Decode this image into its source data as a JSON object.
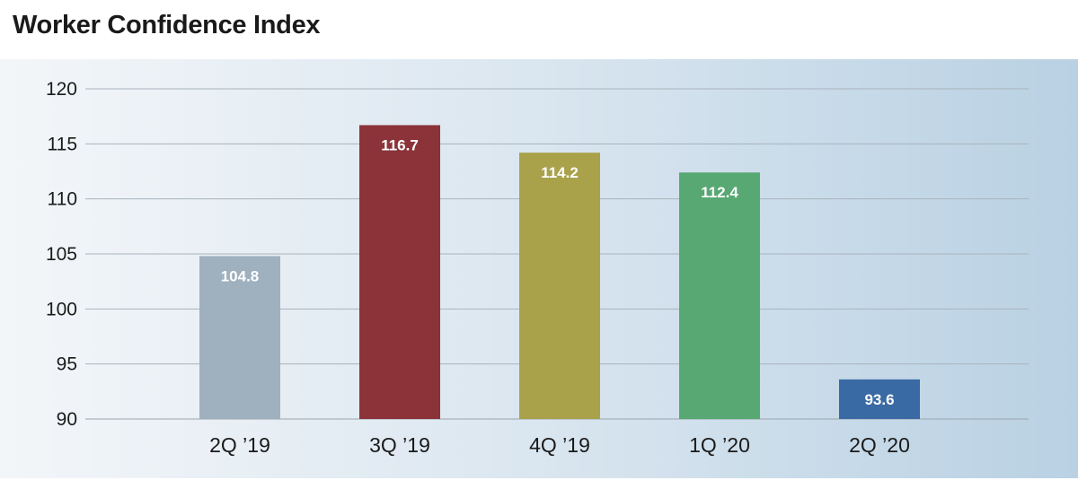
{
  "chart_data": {
    "type": "bar",
    "title": "Worker Confidence Index",
    "xlabel": "",
    "ylabel": "",
    "ylim": [
      90,
      120
    ],
    "yticks": [
      90,
      95,
      100,
      105,
      110,
      115,
      120
    ],
    "grid": true,
    "categories": [
      "2Q ’19",
      "3Q ’19",
      "4Q ’19",
      "1Q ’20",
      "2Q ’20"
    ],
    "values": [
      104.8,
      116.7,
      114.2,
      112.4,
      93.6
    ],
    "data_labels": [
      "104.8",
      "116.7",
      "114.2",
      "112.4",
      "93.6"
    ],
    "colors": [
      "#9fb0be",
      "#8b3339",
      "#a9a24b",
      "#58a873",
      "#3a6aa3"
    ]
  }
}
